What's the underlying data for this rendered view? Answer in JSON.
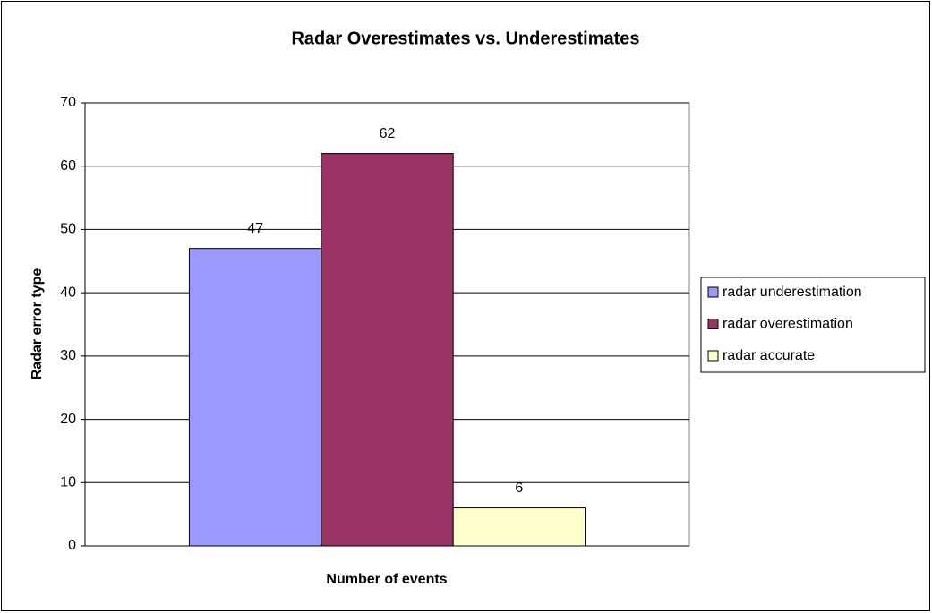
{
  "chart_data": {
    "type": "bar",
    "title": "Radar Overestimates vs. Underestimates",
    "x_label": "Number of events",
    "y_label": "Radar error type",
    "categories": [
      null
    ],
    "series": [
      {
        "name": "radar underestimation",
        "color": "#9999ff",
        "values": [
          47
        ]
      },
      {
        "name": "radar overestimation",
        "color": "#993366",
        "values": [
          62
        ]
      },
      {
        "name": "radar accurate",
        "color": "#ffffcc",
        "values": [
          6
        ]
      }
    ],
    "ylim": [
      0,
      70
    ],
    "yticks": [
      0,
      10,
      20,
      30,
      40,
      50,
      60,
      70
    ],
    "grid": true,
    "legend": "right",
    "value_labels": true
  }
}
